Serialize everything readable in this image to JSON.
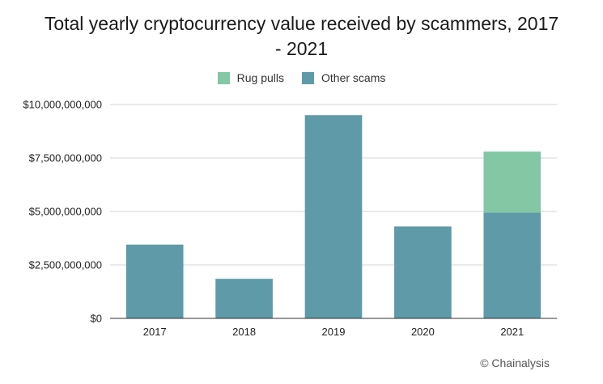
{
  "chart_data": {
    "type": "bar",
    "stacked": true,
    "title_line1": "Total yearly cryptocurrency value received by scammers, 2017",
    "title_line2": "- 2021",
    "categories": [
      "2017",
      "2018",
      "2019",
      "2020",
      "2021"
    ],
    "series": [
      {
        "name": "Other scams",
        "color": "#5e9aa8",
        "values": [
          3450000000,
          1850000000,
          9500000000,
          4300000000,
          4950000000
        ]
      },
      {
        "name": "Rug pulls",
        "color": "#83c7a5",
        "values": [
          0,
          0,
          0,
          0,
          2850000000
        ]
      }
    ],
    "legend_order": [
      "Rug pulls",
      "Other scams"
    ],
    "legend_position": "top-center",
    "y_ticks": [
      {
        "value": 0,
        "label": "$0"
      },
      {
        "value": 2500000000,
        "label": "$2,500,000,000"
      },
      {
        "value": 5000000000,
        "label": "$5,000,000,000"
      },
      {
        "value": 7500000000,
        "label": "$7,500,000,000"
      },
      {
        "value": 10000000000,
        "label": "$10,000,000,000"
      }
    ],
    "ylim": [
      0,
      10000000000
    ],
    "grid": true,
    "xlabel": "",
    "ylabel": ""
  },
  "legend": {
    "rug_pulls_label": "Rug pulls",
    "other_scams_label": "Other scams",
    "rug_pulls_color": "#83c7a5",
    "other_scams_color": "#5e9aa8"
  },
  "source": "© Chainalysis"
}
